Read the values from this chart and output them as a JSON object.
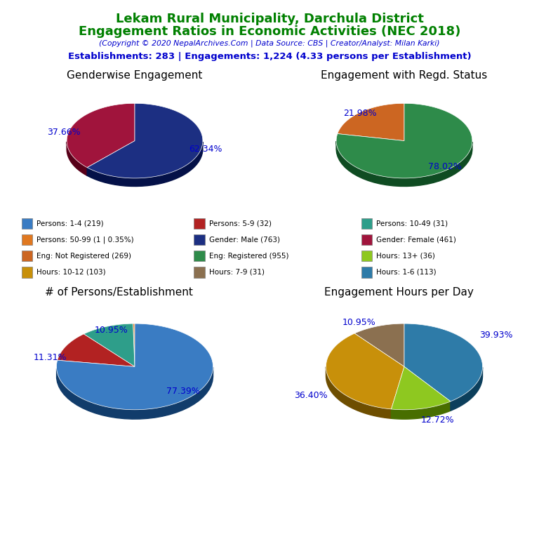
{
  "title_line1": "Lekam Rural Municipality, Darchula District",
  "title_line2": "Engagement Ratios in Economic Activities (NEC 2018)",
  "subtitle": "(Copyright © 2020 NepalArchives.Com | Data Source: CBS | Creator/Analyst: Milan Karki)",
  "stats": "Establishments: 283 | Engagements: 1,224 (4.33 persons per Establishment)",
  "title_color": "#008000",
  "subtitle_color": "#0000CD",
  "stats_color": "#0000CD",
  "chart1_title": "Genderwise Engagement",
  "chart1_values": [
    62.34,
    37.66
  ],
  "chart1_colors": [
    "#1C2F82",
    "#A0143C"
  ],
  "chart1_labels": [
    "62.34%",
    "37.66%"
  ],
  "chart1_startangle": 90,
  "chart2_title": "Engagement with Regd. Status",
  "chart2_values": [
    78.02,
    21.98
  ],
  "chart2_colors": [
    "#2E8B4A",
    "#CC6622"
  ],
  "chart2_labels": [
    "78.02%",
    "21.98%"
  ],
  "chart2_startangle": 90,
  "chart3_title": "# of Persons/Establishment",
  "chart3_values": [
    77.39,
    11.31,
    10.95,
    0.35
  ],
  "chart3_colors": [
    "#3A7CC3",
    "#B22222",
    "#2E9E8A",
    "#E07820"
  ],
  "chart3_labels": [
    "77.39%",
    "11.31%",
    "10.95%",
    ""
  ],
  "chart3_startangle": 90,
  "chart4_title": "Engagement Hours per Day",
  "chart4_values": [
    39.93,
    12.72,
    36.4,
    10.95
  ],
  "chart4_colors": [
    "#2E7BA8",
    "#8EC820",
    "#C8900A",
    "#8B7050"
  ],
  "chart4_labels": [
    "39.93%",
    "12.72%",
    "36.40%",
    "10.95%"
  ],
  "chart4_startangle": 90,
  "legend_items": [
    {
      "label": "Persons: 1-4 (219)",
      "color": "#3A7CC3"
    },
    {
      "label": "Persons: 5-9 (32)",
      "color": "#B22222"
    },
    {
      "label": "Persons: 10-49 (31)",
      "color": "#2E9E8A"
    },
    {
      "label": "Persons: 50-99 (1 | 0.35%)",
      "color": "#E07820"
    },
    {
      "label": "Gender: Male (763)",
      "color": "#1C2F82"
    },
    {
      "label": "Gender: Female (461)",
      "color": "#A0143C"
    },
    {
      "label": "Eng: Not Registered (269)",
      "color": "#CC6622"
    },
    {
      "label": "Eng: Registered (955)",
      "color": "#2E8B4A"
    },
    {
      "label": "Hours: 13+ (36)",
      "color": "#8EC820"
    },
    {
      "label": "Hours: 10-12 (103)",
      "color": "#C8900A"
    },
    {
      "label": "Hours: 7-9 (31)",
      "color": "#8B7050"
    },
    {
      "label": "Hours: 1-6 (113)",
      "color": "#2E7BA8"
    }
  ],
  "background_color": "#FFFFFF"
}
